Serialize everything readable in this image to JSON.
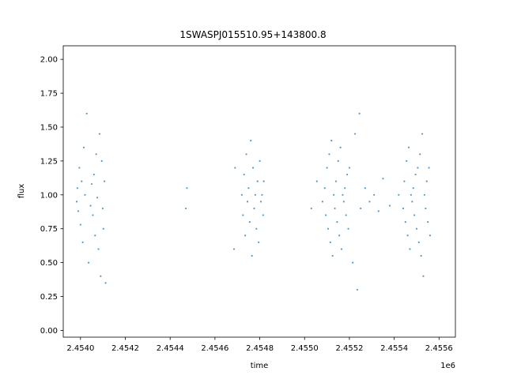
{
  "chart_data": {
    "type": "scatter",
    "title": "1SWASPJ015510.95+143800.8",
    "xlabel": "time",
    "ylabel": "flux",
    "x_offset_label": "1e6",
    "xlim": [
      2453923,
      2455673
    ],
    "ylim": [
      -0.05,
      2.1
    ],
    "x_ticks": [
      2454000,
      2454200,
      2454400,
      2454600,
      2454800,
      2455000,
      2455200,
      2455400,
      2455600
    ],
    "x_tick_labels": [
      "2.4540",
      "2.4542",
      "2.4544",
      "2.4546",
      "2.4548",
      "2.4550",
      "2.4552",
      "2.4554",
      "2.4556"
    ],
    "y_ticks": [
      0.0,
      0.25,
      0.5,
      0.75,
      1.0,
      1.25,
      1.5,
      1.75,
      2.0
    ],
    "y_tick_labels": [
      "0.00",
      "0.25",
      "0.50",
      "0.75",
      "1.00",
      "1.25",
      "1.50",
      "1.75",
      "2.00"
    ],
    "grid": false,
    "marker_color": "#1f77b4",
    "series": [
      {
        "x": [
          2453983,
          2453986,
          2453990,
          2453995,
          2454000,
          2454005,
          2454010,
          2454015,
          2454020,
          2454028,
          2454036,
          2454045,
          2454050,
          2454055,
          2454060,
          2454065,
          2454070,
          2454075,
          2454080,
          2454085,
          2454090,
          2454095,
          2454099,
          2454102,
          2454107,
          2454112,
          2454470,
          2454475,
          2454685,
          2454690,
          2454720,
          2454725,
          2454730,
          2454735,
          2454740,
          2454745,
          2454750,
          2454755,
          2454760,
          2454765,
          2454770,
          2454775,
          2454780,
          2454785,
          2454790,
          2454795,
          2454800,
          2454805,
          2454810,
          2454815,
          2454818,
          2455030,
          2455055,
          2455080,
          2455090,
          2455095,
          2455100,
          2455105,
          2455110,
          2455115,
          2455120,
          2455125,
          2455130,
          2455135,
          2455140,
          2455145,
          2455150,
          2455155,
          2455160,
          2455165,
          2455170,
          2455175,
          2455180,
          2455185,
          2455190,
          2455195,
          2455200,
          2455215,
          2455225,
          2455235,
          2455245,
          2455250,
          2455270,
          2455290,
          2455310,
          2455330,
          2455350,
          2455380,
          2455420,
          2455440,
          2455445,
          2455450,
          2455455,
          2455460,
          2455465,
          2455470,
          2455475,
          2455480,
          2455485,
          2455490,
          2455495,
          2455500,
          2455505,
          2455510,
          2455515,
          2455520,
          2455525,
          2455530,
          2455535,
          2455540,
          2455545,
          2455550,
          2455555,
          2455560
        ],
        "y": [
          0.95,
          1.05,
          0.88,
          1.2,
          0.78,
          1.1,
          0.65,
          1.35,
          1.0,
          1.6,
          0.5,
          0.92,
          1.08,
          0.85,
          1.15,
          0.7,
          1.3,
          0.98,
          0.6,
          1.45,
          0.4,
          1.25,
          0.9,
          0.75,
          1.1,
          0.35,
          0.9,
          1.05,
          0.6,
          1.2,
          1.0,
          0.85,
          1.15,
          0.7,
          1.3,
          0.95,
          1.05,
          0.8,
          1.4,
          0.55,
          1.2,
          0.9,
          1.0,
          0.75,
          1.1,
          0.65,
          1.25,
          0.95,
          1.0,
          0.85,
          1.1,
          0.9,
          1.1,
          0.95,
          1.05,
          0.85,
          1.2,
          0.75,
          1.3,
          0.65,
          1.4,
          0.55,
          1.0,
          0.9,
          1.1,
          0.8,
          1.25,
          0.7,
          1.35,
          0.6,
          1.0,
          0.95,
          1.05,
          0.85,
          1.15,
          0.75,
          1.2,
          0.5,
          1.45,
          0.3,
          1.6,
          0.9,
          1.05,
          0.95,
          1.0,
          0.88,
          1.12,
          0.92,
          1.0,
          0.9,
          1.1,
          0.8,
          1.25,
          0.7,
          1.35,
          0.6,
          1.0,
          0.95,
          1.05,
          0.85,
          1.15,
          0.75,
          1.2,
          0.65,
          1.3,
          0.55,
          1.45,
          0.4,
          1.0,
          0.9,
          1.1,
          0.8,
          1.2,
          0.7
        ]
      }
    ]
  }
}
